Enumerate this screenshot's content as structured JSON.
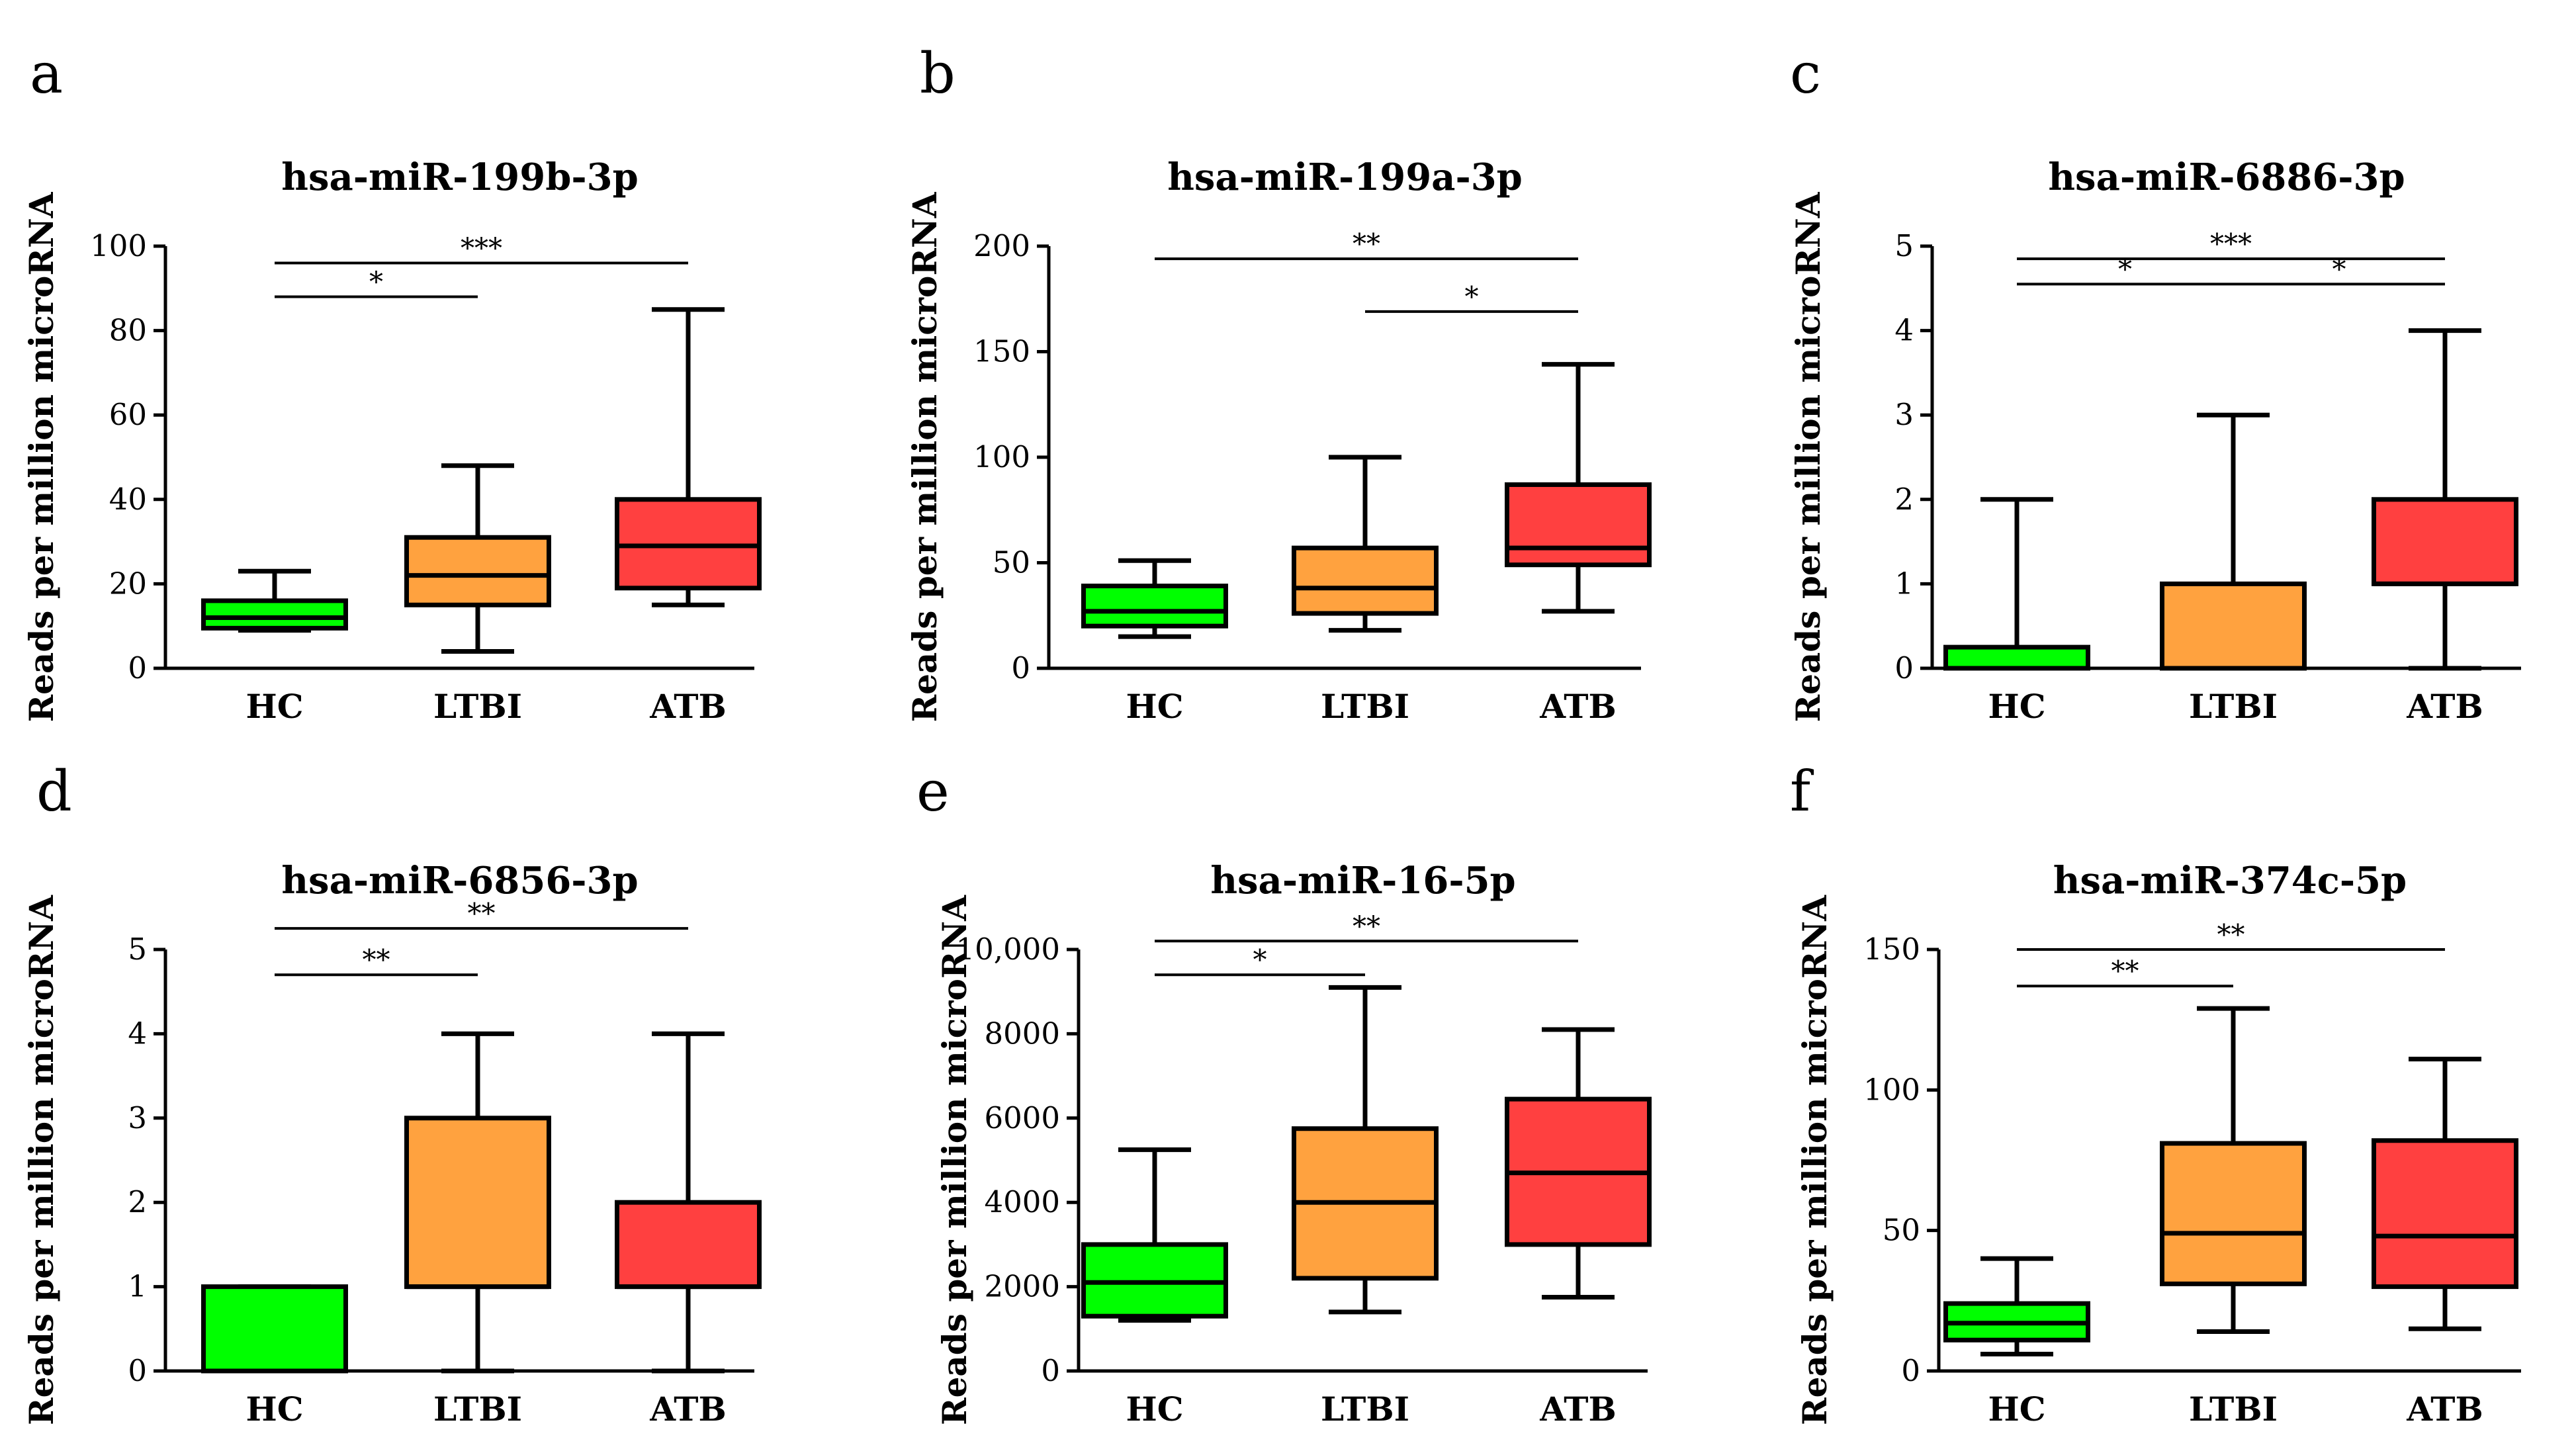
{
  "colors": {
    "HC": "#00ff00",
    "LTBI": "#ffa23f",
    "ATB": "#ff4040",
    "stroke": "#000000"
  },
  "chart_data": [
    {
      "type": "box",
      "panel": "a",
      "title": "hsa-miR-199b-3p",
      "ylabel": "Reads per million microRNA",
      "ylim": [
        0,
        100
      ],
      "yticks": [
        "0",
        "20",
        "40",
        "60",
        "80",
        "100"
      ],
      "categories": [
        "HC",
        "LTBI",
        "ATB"
      ],
      "boxes": [
        {
          "min": 9,
          "q1": 9.5,
          "median": 12,
          "q3": 16,
          "max": 23
        },
        {
          "min": 4,
          "q1": 15,
          "median": 22,
          "q3": 31,
          "max": 48
        },
        {
          "min": 15,
          "q1": 19,
          "median": 29,
          "q3": 40,
          "max": 85
        }
      ],
      "significance": [
        {
          "from": 0,
          "to": 1,
          "label": "*",
          "level": 88
        },
        {
          "from": 0,
          "to": 2,
          "label": "***",
          "level": 96
        }
      ]
    },
    {
      "type": "box",
      "panel": "b",
      "title": "hsa-miR-199a-3p",
      "ylabel": "Reads per million microRNA",
      "ylim": [
        0,
        200
      ],
      "yticks": [
        "0",
        "50",
        "100",
        "150",
        "200"
      ],
      "categories": [
        "HC",
        "LTBI",
        "ATB"
      ],
      "boxes": [
        {
          "min": 15,
          "q1": 20,
          "median": 27,
          "q3": 39,
          "max": 51
        },
        {
          "min": 18,
          "q1": 26,
          "median": 38,
          "q3": 57,
          "max": 100
        },
        {
          "min": 27,
          "q1": 49,
          "median": 57,
          "q3": 87,
          "max": 144
        }
      ],
      "significance": [
        {
          "from": 1,
          "to": 2,
          "label": "*",
          "level": 169
        },
        {
          "from": 0,
          "to": 2,
          "label": "**",
          "level": 194
        }
      ]
    },
    {
      "type": "box",
      "panel": "c",
      "title": "hsa-miR-6886-3p",
      "ylabel": "Reads per million microRNA",
      "ylim": [
        0,
        5
      ],
      "yticks": [
        "0",
        "1",
        "2",
        "3",
        "4",
        "5"
      ],
      "categories": [
        "HC",
        "LTBI",
        "ATB"
      ],
      "boxes": [
        {
          "min": 0,
          "q1": 0,
          "median": 0,
          "q3": 0.25,
          "max": 2
        },
        {
          "min": 0,
          "q1": 0,
          "median": 0,
          "q3": 1,
          "max": 3
        },
        {
          "min": 0,
          "q1": 1,
          "median": 1,
          "q3": 2,
          "max": 4
        }
      ],
      "significance": [
        {
          "from": 0,
          "to": 1,
          "label": "*",
          "level": 4.55
        },
        {
          "from": 1,
          "to": 2,
          "label": "*",
          "level": 4.55
        },
        {
          "from": 0,
          "to": 2,
          "label": "***",
          "level": 4.85
        }
      ]
    },
    {
      "type": "box",
      "panel": "d",
      "title": "hsa-miR-6856-3p",
      "ylabel": "Reads per million microRNA",
      "ylim": [
        0,
        5
      ],
      "yticks": [
        "0",
        "1",
        "2",
        "3",
        "4",
        "5"
      ],
      "categories": [
        "HC",
        "LTBI",
        "ATB"
      ],
      "boxes": [
        {
          "min": 0,
          "q1": 0,
          "median": 0,
          "q3": 1,
          "max": 1
        },
        {
          "min": 0,
          "q1": 1,
          "median": 1,
          "q3": 3,
          "max": 4
        },
        {
          "min": 0,
          "q1": 1,
          "median": 1,
          "q3": 2,
          "max": 4
        }
      ],
      "significance": [
        {
          "from": 0,
          "to": 1,
          "label": "**",
          "level": 4.7
        },
        {
          "from": 0,
          "to": 2,
          "label": "**",
          "level": 5.25
        }
      ]
    },
    {
      "type": "box",
      "panel": "e",
      "title": "hsa-miR-16-5p",
      "ylabel": "Reads per million microRNA",
      "ylim": [
        0,
        10000
      ],
      "yticks": [
        "0",
        "2000",
        "4000",
        "6000",
        "8000",
        "10,000"
      ],
      "categories": [
        "HC",
        "LTBI",
        "ATB"
      ],
      "boxes": [
        {
          "min": 1200,
          "q1": 1300,
          "median": 2100,
          "q3": 3000,
          "max": 5250
        },
        {
          "min": 1400,
          "q1": 2200,
          "median": 4000,
          "q3": 5750,
          "max": 9100
        },
        {
          "min": 1750,
          "q1": 3000,
          "median": 4700,
          "q3": 6450,
          "max": 8100
        }
      ],
      "significance": [
        {
          "from": 0,
          "to": 1,
          "label": "*",
          "level": 9400
        },
        {
          "from": 0,
          "to": 2,
          "label": "**",
          "level": 10200
        }
      ]
    },
    {
      "type": "box",
      "panel": "f",
      "title": "hsa-miR-374c-5p",
      "ylabel": "Reads per million microRNA",
      "ylim": [
        0,
        150
      ],
      "yticks": [
        "0",
        "50",
        "100",
        "150"
      ],
      "categories": [
        "HC",
        "LTBI",
        "ATB"
      ],
      "boxes": [
        {
          "min": 6,
          "q1": 11,
          "median": 17,
          "q3": 24,
          "max": 40
        },
        {
          "min": 14,
          "q1": 31,
          "median": 49,
          "q3": 81,
          "max": 129
        },
        {
          "min": 15,
          "q1": 30,
          "median": 48,
          "q3": 82,
          "max": 111
        }
      ],
      "significance": [
        {
          "from": 0,
          "to": 1,
          "label": "**",
          "level": 137
        },
        {
          "from": 0,
          "to": 2,
          "label": "**",
          "level": 150
        }
      ]
    }
  ]
}
